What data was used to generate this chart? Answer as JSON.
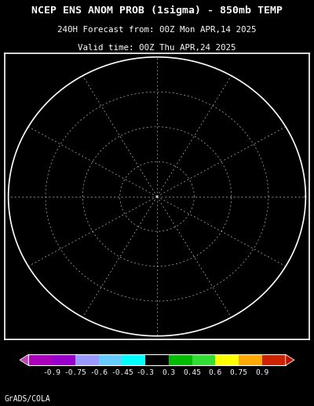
{
  "title_line1": "NCEP ENS ANOM PROB (1sigma) - 850mb TEMP",
  "title_line2": "240H Forecast from: 00Z Mon APR,14 2025",
  "title_line3": "Valid time: 00Z Thu APR,24 2025",
  "footer_text": "GrADS/COLA",
  "bg_color": "#000000",
  "title_color": "#ffffff",
  "title1_fontsize": 9.5,
  "title2_fontsize": 7.8,
  "title3_fontsize": 7.8,
  "footer_fontsize": 7.0,
  "colorbar_colors": [
    "#aa00bb",
    "#9900cc",
    "#9999ff",
    "#66ccff",
    "#00ffff",
    "#000000",
    "#00bb00",
    "#33dd33",
    "#ffff00",
    "#ffaa00",
    "#cc2200"
  ],
  "colorbar_values": [
    "-0.9",
    "-0.75",
    "-0.6",
    "-0.45",
    "-0.3",
    "0.3",
    "0.45",
    "0.6",
    "0.75",
    "0.9"
  ],
  "colorbar_arrow_left": "#bb44bb",
  "colorbar_arrow_right": "#bb1100"
}
